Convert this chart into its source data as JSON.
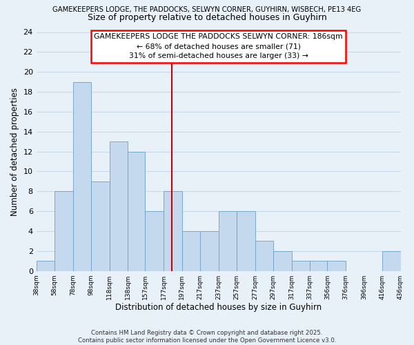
{
  "title_top": "GAMEKEEPERS LODGE, THE PADDOCKS, SELWYN CORNER, GUYHIRN, WISBECH, PE13 4EG",
  "title_main": "Size of property relative to detached houses in Guyhirn",
  "xlabel": "Distribution of detached houses by size in Guyhirn",
  "ylabel": "Number of detached properties",
  "bin_edges": [
    38,
    58,
    78,
    98,
    118,
    138,
    157,
    177,
    197,
    217,
    237,
    257,
    277,
    297,
    317,
    337,
    356,
    376,
    396,
    416,
    436
  ],
  "counts": [
    1,
    8,
    19,
    9,
    13,
    12,
    6,
    8,
    4,
    4,
    6,
    6,
    3,
    2,
    1,
    1,
    1,
    0,
    0,
    2
  ],
  "bar_color": "#c5d9ee",
  "bar_edge_color": "#6a9fc8",
  "vline_x": 186,
  "vline_color": "#cc0000",
  "annotation_line1": "GAMEKEEPERS LODGE THE PADDOCKS SELWYN CORNER: 186sqm",
  "annotation_line2": "← 68% of detached houses are smaller (71)",
  "annotation_line3": "31% of semi-detached houses are larger (33) →",
  "grid_color": "#c8d8e8",
  "background_color": "#e8f0f8",
  "ylim": [
    0,
    24
  ],
  "yticks": [
    0,
    2,
    4,
    6,
    8,
    10,
    12,
    14,
    16,
    18,
    20,
    22,
    24
  ],
  "footer_text": "Contains HM Land Registry data © Crown copyright and database right 2025.\nContains public sector information licensed under the Open Government Licence v3.0.",
  "tick_labels": [
    "38sqm",
    "58sqm",
    "78sqm",
    "98sqm",
    "118sqm",
    "138sqm",
    "157sqm",
    "177sqm",
    "197sqm",
    "217sqm",
    "237sqm",
    "257sqm",
    "277sqm",
    "297sqm",
    "317sqm",
    "337sqm",
    "356sqm",
    "376sqm",
    "396sqm",
    "416sqm",
    "436sqm"
  ]
}
